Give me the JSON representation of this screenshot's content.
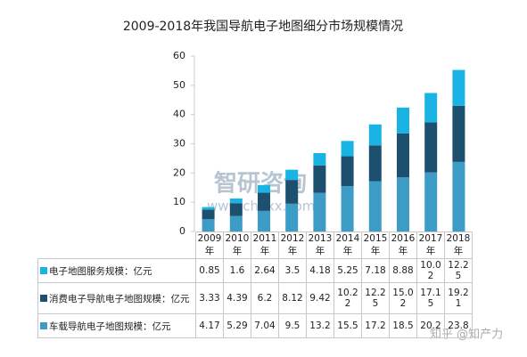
{
  "chart_data": {
    "type": "stacked_bar",
    "title": "2009-2018年我国导航电子地图细分市场规模情况",
    "categories": [
      "2009年",
      "2010年",
      "2011年",
      "2012年",
      "2013年",
      "2014年",
      "2015年",
      "2016年",
      "2017年",
      "2018年"
    ],
    "series": [
      {
        "name": "电子地图服务规模：亿元",
        "color": "#1ab4e4",
        "values": [
          0.85,
          1.6,
          2.64,
          3.5,
          4.18,
          5.25,
          7.18,
          8.88,
          10.02,
          12.25
        ]
      },
      {
        "name": "消费电子导航电子地图规模：亿元",
        "color": "#1d4f6e",
        "values": [
          3.33,
          4.39,
          6.2,
          8.12,
          9.42,
          10.22,
          12.25,
          15.02,
          17.15,
          19.21
        ]
      },
      {
        "name": "车载导航电子地图规模：亿元",
        "color": "#3d9cc6",
        "values": [
          4.17,
          5.29,
          7.04,
          9.5,
          13.2,
          15.5,
          17.2,
          18.5,
          20.2,
          23.8
        ]
      }
    ],
    "ylim": [
      0,
      60
    ],
    "yticks": [
      0,
      10,
      20,
      30,
      40,
      50,
      60
    ],
    "grid": false,
    "annotations": [
      "智研咨询",
      "www.chyxx.com",
      "知乎 @知产力"
    ]
  }
}
